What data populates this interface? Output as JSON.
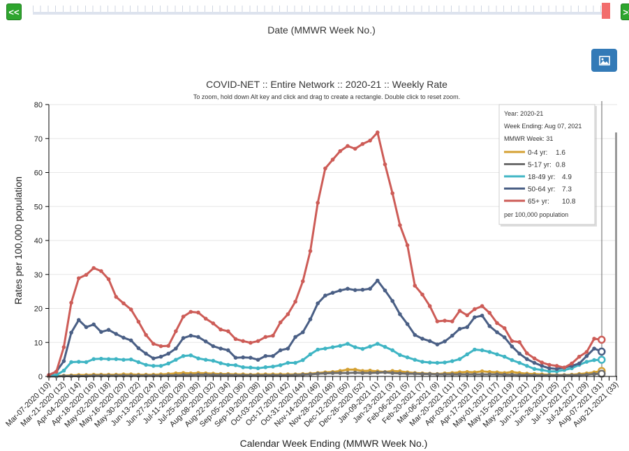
{
  "controls": {
    "prev_label": "<<",
    "next_label": ">>",
    "slider_label": "Date (MMWR Week No.)",
    "image_button_icon": "image-icon"
  },
  "tooltip": {
    "year": "Year: 2020-21",
    "week_ending": "Week Ending: Aug 07, 2021",
    "mmwr_week": "MMWR Week: 31",
    "rows": [
      {
        "label": "0-4 yr:",
        "value": "1.6"
      },
      {
        "label": "5-17 yr:",
        "value": "0.8"
      },
      {
        "label": "18-49 yr:",
        "value": "4.9"
      },
      {
        "label": "50-64 yr:",
        "value": "7.3"
      },
      {
        "label": "65+ yr:",
        "value": "10.8"
      }
    ],
    "footer": "per 100,000 population"
  },
  "chart_data": {
    "type": "line",
    "title": "COVID-NET :: Entire Network :: 2020-21 :: Weekly Rate",
    "subtitle": "To zoom, hold down Alt key and click and drag to create a rectangle. Double click to reset zoom.",
    "xlabel": "Calendar Week Ending (MMWR Week No.)",
    "ylabel": "Rates per 100,000 population",
    "ylim": [
      0,
      80
    ],
    "yticks": [
      0,
      10,
      20,
      30,
      40,
      50,
      60,
      70,
      80
    ],
    "grid": true,
    "legend": "tooltip top-right",
    "x_tick_labels": [
      "Mar-07-2020 (10)",
      "Mar-21-2020 (12)",
      "Apr-04-2020 (14)",
      "Apr-18-2020 (16)",
      "May-02-2020 (18)",
      "May-16-2020 (20)",
      "May-30-2020 (22)",
      "Jun-13-2020 (24)",
      "Jun-27-2020 (26)",
      "Jul-11-2020 (28)",
      "Jul-25-2020 (30)",
      "Aug-08-2020 (32)",
      "Aug-22-2020 (34)",
      "Sep-05-2020 (36)",
      "Sep-19-2020 (38)",
      "Oct-03-2020 (40)",
      "Oct-17-2020 (42)",
      "Oct-31-2020 (44)",
      "Nov-14-2020 (46)",
      "Nov-28-2020 (48)",
      "Dec-12-2020 (50)",
      "Dec-26-2020 (52)",
      "Jan-09-2021 (1)",
      "Jan-23-2021 (3)",
      "Feb-06-2021 (5)",
      "Feb-20-2021 (7)",
      "Mar-06-2021 (9)",
      "Mar-20-2021 (11)",
      "Apr-03-2021 (13)",
      "Apr-17-2021 (15)",
      "May-01-2021 (17)",
      "May-15-2021 (19)",
      "May-29-2021 (21)",
      "Jun-12-2021 (23)",
      "Jun-26-2021 (25)",
      "Jul-10-2021 (27)",
      "Jul-24-2021 (29)",
      "Aug-07-2021 (31)",
      "Aug-21-2021 (33)"
    ],
    "x": [
      "2020-03-07",
      "2020-03-14",
      "2020-03-21",
      "2020-03-28",
      "2020-04-04",
      "2020-04-11",
      "2020-04-18",
      "2020-04-25",
      "2020-05-02",
      "2020-05-09",
      "2020-05-16",
      "2020-05-23",
      "2020-05-30",
      "2020-06-06",
      "2020-06-13",
      "2020-06-20",
      "2020-06-27",
      "2020-07-04",
      "2020-07-11",
      "2020-07-18",
      "2020-07-25",
      "2020-08-01",
      "2020-08-08",
      "2020-08-15",
      "2020-08-22",
      "2020-08-29",
      "2020-09-05",
      "2020-09-12",
      "2020-09-19",
      "2020-09-26",
      "2020-10-03",
      "2020-10-10",
      "2020-10-17",
      "2020-10-24",
      "2020-10-31",
      "2020-11-07",
      "2020-11-14",
      "2020-11-21",
      "2020-11-28",
      "2020-12-05",
      "2020-12-12",
      "2020-12-19",
      "2020-12-26",
      "2021-01-02",
      "2021-01-09",
      "2021-01-16",
      "2021-01-23",
      "2021-01-30",
      "2021-02-06",
      "2021-02-13",
      "2021-02-20",
      "2021-02-27",
      "2021-03-06",
      "2021-03-13",
      "2021-03-20",
      "2021-03-27",
      "2021-04-03",
      "2021-04-10",
      "2021-04-17",
      "2021-04-24",
      "2021-05-01",
      "2021-05-08",
      "2021-05-15",
      "2021-05-22",
      "2021-05-29",
      "2021-06-05",
      "2021-06-12",
      "2021-06-19",
      "2021-06-26",
      "2021-07-03",
      "2021-07-10",
      "2021-07-17",
      "2021-07-24",
      "2021-07-31",
      "2021-08-07"
    ],
    "series": [
      {
        "name": "0-4 yr",
        "color": "#d4a032",
        "values": [
          0,
          0.1,
          0.2,
          0.3,
          0.4,
          0.4,
          0.5,
          0.5,
          0.5,
          0.5,
          0.6,
          0.6,
          0.5,
          0.5,
          0.5,
          0.6,
          0.7,
          0.9,
          1.0,
          0.9,
          1.0,
          0.9,
          0.8,
          0.7,
          0.7,
          0.6,
          0.6,
          0.5,
          0.6,
          0.6,
          0.6,
          0.6,
          0.6,
          0.6,
          0.7,
          0.8,
          1.0,
          1.2,
          1.3,
          1.6,
          2.0,
          2.0,
          1.6,
          1.7,
          1.5,
          1.3,
          1.6,
          1.5,
          1.2,
          1.0,
          0.9,
          0.8,
          0.7,
          0.9,
          1.0,
          1.2,
          1.3,
          1.2,
          1.5,
          1.3,
          1.2,
          1.0,
          1.3,
          1.0,
          0.8,
          0.7,
          0.6,
          0.5,
          0.4,
          0.4,
          0.5,
          0.7,
          0.9,
          1.2,
          1.6
        ]
      },
      {
        "name": "5-17 yr",
        "color": "#6e6e6e",
        "values": [
          0,
          0,
          0.1,
          0.1,
          0.1,
          0.1,
          0.2,
          0.2,
          0.2,
          0.2,
          0.2,
          0.2,
          0.2,
          0.2,
          0.2,
          0.2,
          0.3,
          0.3,
          0.4,
          0.4,
          0.5,
          0.5,
          0.4,
          0.4,
          0.4,
          0.3,
          0.3,
          0.3,
          0.3,
          0.3,
          0.3,
          0.3,
          0.3,
          0.4,
          0.5,
          0.6,
          0.8,
          0.9,
          1.0,
          1.0,
          1.0,
          1.1,
          1.0,
          1.0,
          1.1,
          1.2,
          1.0,
          0.9,
          0.8,
          0.8,
          0.7,
          0.7,
          0.6,
          0.6,
          0.6,
          0.6,
          0.6,
          0.6,
          0.6,
          0.6,
          0.6,
          0.5,
          0.5,
          0.4,
          0.4,
          0.3,
          0.3,
          0.3,
          0.3,
          0.3,
          0.3,
          0.4,
          0.5,
          0.7,
          0.8
        ]
      },
      {
        "name": "18-49 yr",
        "color": "#3fb5c4",
        "values": [
          0.4,
          0.4,
          1.7,
          4.2,
          4.3,
          4.2,
          5.1,
          5.2,
          5.1,
          5.1,
          4.9,
          5.0,
          4.2,
          3.4,
          3.1,
          3.1,
          3.8,
          4.9,
          6.0,
          6.2,
          5.3,
          4.9,
          4.6,
          3.9,
          3.4,
          3.3,
          2.7,
          2.6,
          2.4,
          2.7,
          2.9,
          3.3,
          4.0,
          4.0,
          4.8,
          6.5,
          7.9,
          8.2,
          8.6,
          9.0,
          9.6,
          8.6,
          8.1,
          8.8,
          9.6,
          8.7,
          7.7,
          6.3,
          5.6,
          4.9,
          4.3,
          4.1,
          4.0,
          4.1,
          4.5,
          5.1,
          6.5,
          7.9,
          7.7,
          7.2,
          6.5,
          5.8,
          4.8,
          4.0,
          3.1,
          2.2,
          1.9,
          1.5,
          1.5,
          1.9,
          2.4,
          3.4,
          4.3,
          4.8,
          4.9
        ]
      },
      {
        "name": "50-64 yr",
        "color": "#4a5f85",
        "values": [
          0.4,
          1.4,
          4.5,
          12.9,
          16.6,
          14.5,
          15.3,
          13.1,
          13.7,
          12.5,
          11.4,
          10.6,
          8.3,
          6.7,
          5.3,
          5.8,
          6.7,
          8.2,
          11.3,
          12.0,
          11.6,
          10.3,
          8.9,
          8.2,
          7.7,
          5.5,
          5.6,
          5.5,
          4.9,
          6.0,
          6.0,
          7.7,
          8.2,
          11.6,
          13.0,
          16.8,
          21.5,
          23.8,
          24.6,
          25.3,
          25.8,
          25.4,
          25.5,
          25.8,
          28.2,
          25.3,
          22.2,
          18.3,
          15.4,
          12.2,
          11.1,
          10.4,
          9.4,
          10.3,
          12.0,
          14.0,
          14.5,
          17.4,
          17.9,
          14.8,
          13.0,
          11.5,
          8.8,
          6.7,
          5.1,
          4.0,
          3.1,
          2.4,
          2.2,
          2.6,
          3.1,
          3.8,
          6.0,
          8.2,
          7.3
        ]
      },
      {
        "name": "65+ yr",
        "color": "#cd5c57",
        "values": [
          0.4,
          1.4,
          8.6,
          21.7,
          28.9,
          29.9,
          31.9,
          31.0,
          28.6,
          23.4,
          21.5,
          19.7,
          16.1,
          12.2,
          9.6,
          8.9,
          9.0,
          13.3,
          17.6,
          19.0,
          18.8,
          17.0,
          15.6,
          13.8,
          13.3,
          11.0,
          10.4,
          9.9,
          10.4,
          11.6,
          12.0,
          15.9,
          18.3,
          22.0,
          28.0,
          36.9,
          51.1,
          61.2,
          63.8,
          66.3,
          67.8,
          67.0,
          68.4,
          69.4,
          71.8,
          62.4,
          53.9,
          44.5,
          38.6,
          26.7,
          24.1,
          20.7,
          16.2,
          16.4,
          16.2,
          19.3,
          18.0,
          19.8,
          20.7,
          18.7,
          15.7,
          14.2,
          10.4,
          10.1,
          6.8,
          5.3,
          4.1,
          3.4,
          3.1,
          2.6,
          3.8,
          5.8,
          7.2,
          11.1,
          10.8
        ]
      }
    ]
  }
}
